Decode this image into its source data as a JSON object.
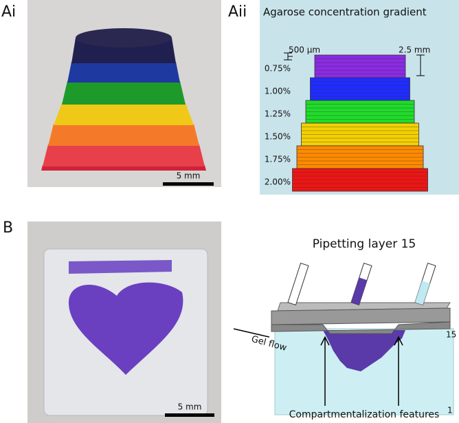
{
  "panel_a1": {
    "label": "Ai",
    "scale_bar": "5 mm"
  },
  "panel_a2": {
    "label": "Aii",
    "title": "Agarose concentration gradient",
    "layer_height": "500 µm",
    "stack_height": "2.5 mm",
    "layers": [
      {
        "label": "0.75%",
        "color": "#8a2be2"
      },
      {
        "label": "1.00%",
        "color": "#1f2cff"
      },
      {
        "label": "1.25%",
        "color": "#1fdc2a"
      },
      {
        "label": "1.50%",
        "color": "#f4d000"
      },
      {
        "label": "1.75%",
        "color": "#ff8a00"
      },
      {
        "label": "2.00%",
        "color": "#ee1515"
      }
    ]
  },
  "panel_b": {
    "label": "B",
    "scale_bar": "5 mm",
    "title": "Pipetting layer 15",
    "flow_label": "Gel flow",
    "top_layer": "15",
    "bottom_layer": "1",
    "caption": "Compartmentalization features"
  }
}
